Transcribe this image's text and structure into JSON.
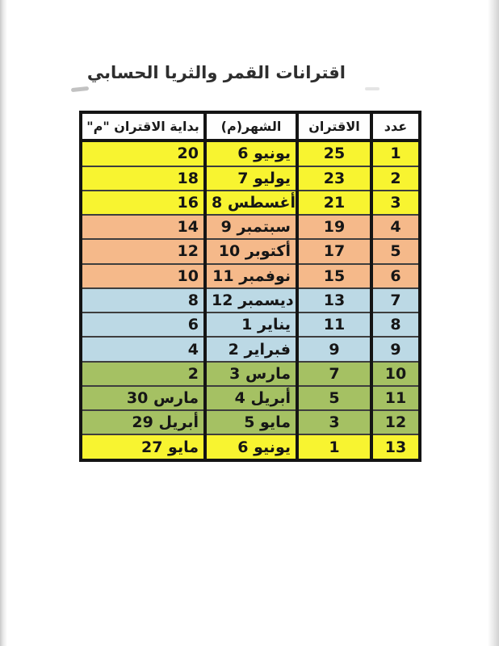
{
  "page": {
    "title": "اقترانات القمر والثريا الحسابي"
  },
  "table": {
    "headers": [
      {
        "key": "count",
        "label": "عدد"
      },
      {
        "key": "conjunction",
        "label": "الاقتران"
      },
      {
        "key": "month",
        "label": "الشهر(م)"
      },
      {
        "key": "start",
        "label": "بداية الاقتران \"م\""
      }
    ],
    "rows": [
      {
        "count": "1",
        "conjunction": "25",
        "month": "6 يونيو",
        "start": "20",
        "color": "yellow"
      },
      {
        "count": "2",
        "conjunction": "23",
        "month": "7 يوليو",
        "start": "18",
        "color": "yellow"
      },
      {
        "count": "3",
        "conjunction": "21",
        "month": "8 أغسطس",
        "start": "16",
        "color": "yellow"
      },
      {
        "count": "4",
        "conjunction": "19",
        "month": "9 سبتمبر",
        "start": "14",
        "color": "orange"
      },
      {
        "count": "5",
        "conjunction": "17",
        "month": "10 أكتوبر",
        "start": "12",
        "color": "orange"
      },
      {
        "count": "6",
        "conjunction": "15",
        "month": "11 نوفمبر",
        "start": "10",
        "color": "orange"
      },
      {
        "count": "7",
        "conjunction": "13",
        "month": "12 ديسمبر",
        "start": "8",
        "color": "blue"
      },
      {
        "count": "8",
        "conjunction": "11",
        "month": "1 يناير",
        "start": "6",
        "color": "blue"
      },
      {
        "count": "9",
        "conjunction": "9",
        "month": "2 فبراير",
        "start": "4",
        "color": "blue"
      },
      {
        "count": "10",
        "conjunction": "7",
        "month": "3 مارس",
        "start": "2",
        "color": "green"
      },
      {
        "count": "11",
        "conjunction": "5",
        "month": "4 أبريل",
        "start": "30 مارس",
        "color": "green"
      },
      {
        "count": "12",
        "conjunction": "3",
        "month": "5 مايو",
        "start": "29 أبريل",
        "color": "green"
      },
      {
        "count": "13",
        "conjunction": "1",
        "month": "6 يونيو",
        "start": "27 مايو",
        "color": "yellow"
      }
    ]
  },
  "colors": {
    "yellow": "#f8f430",
    "orange": "#f5b98a",
    "blue": "#bcd9e5",
    "green": "#a5c163",
    "header": "#fefefe",
    "border": "#141414"
  }
}
